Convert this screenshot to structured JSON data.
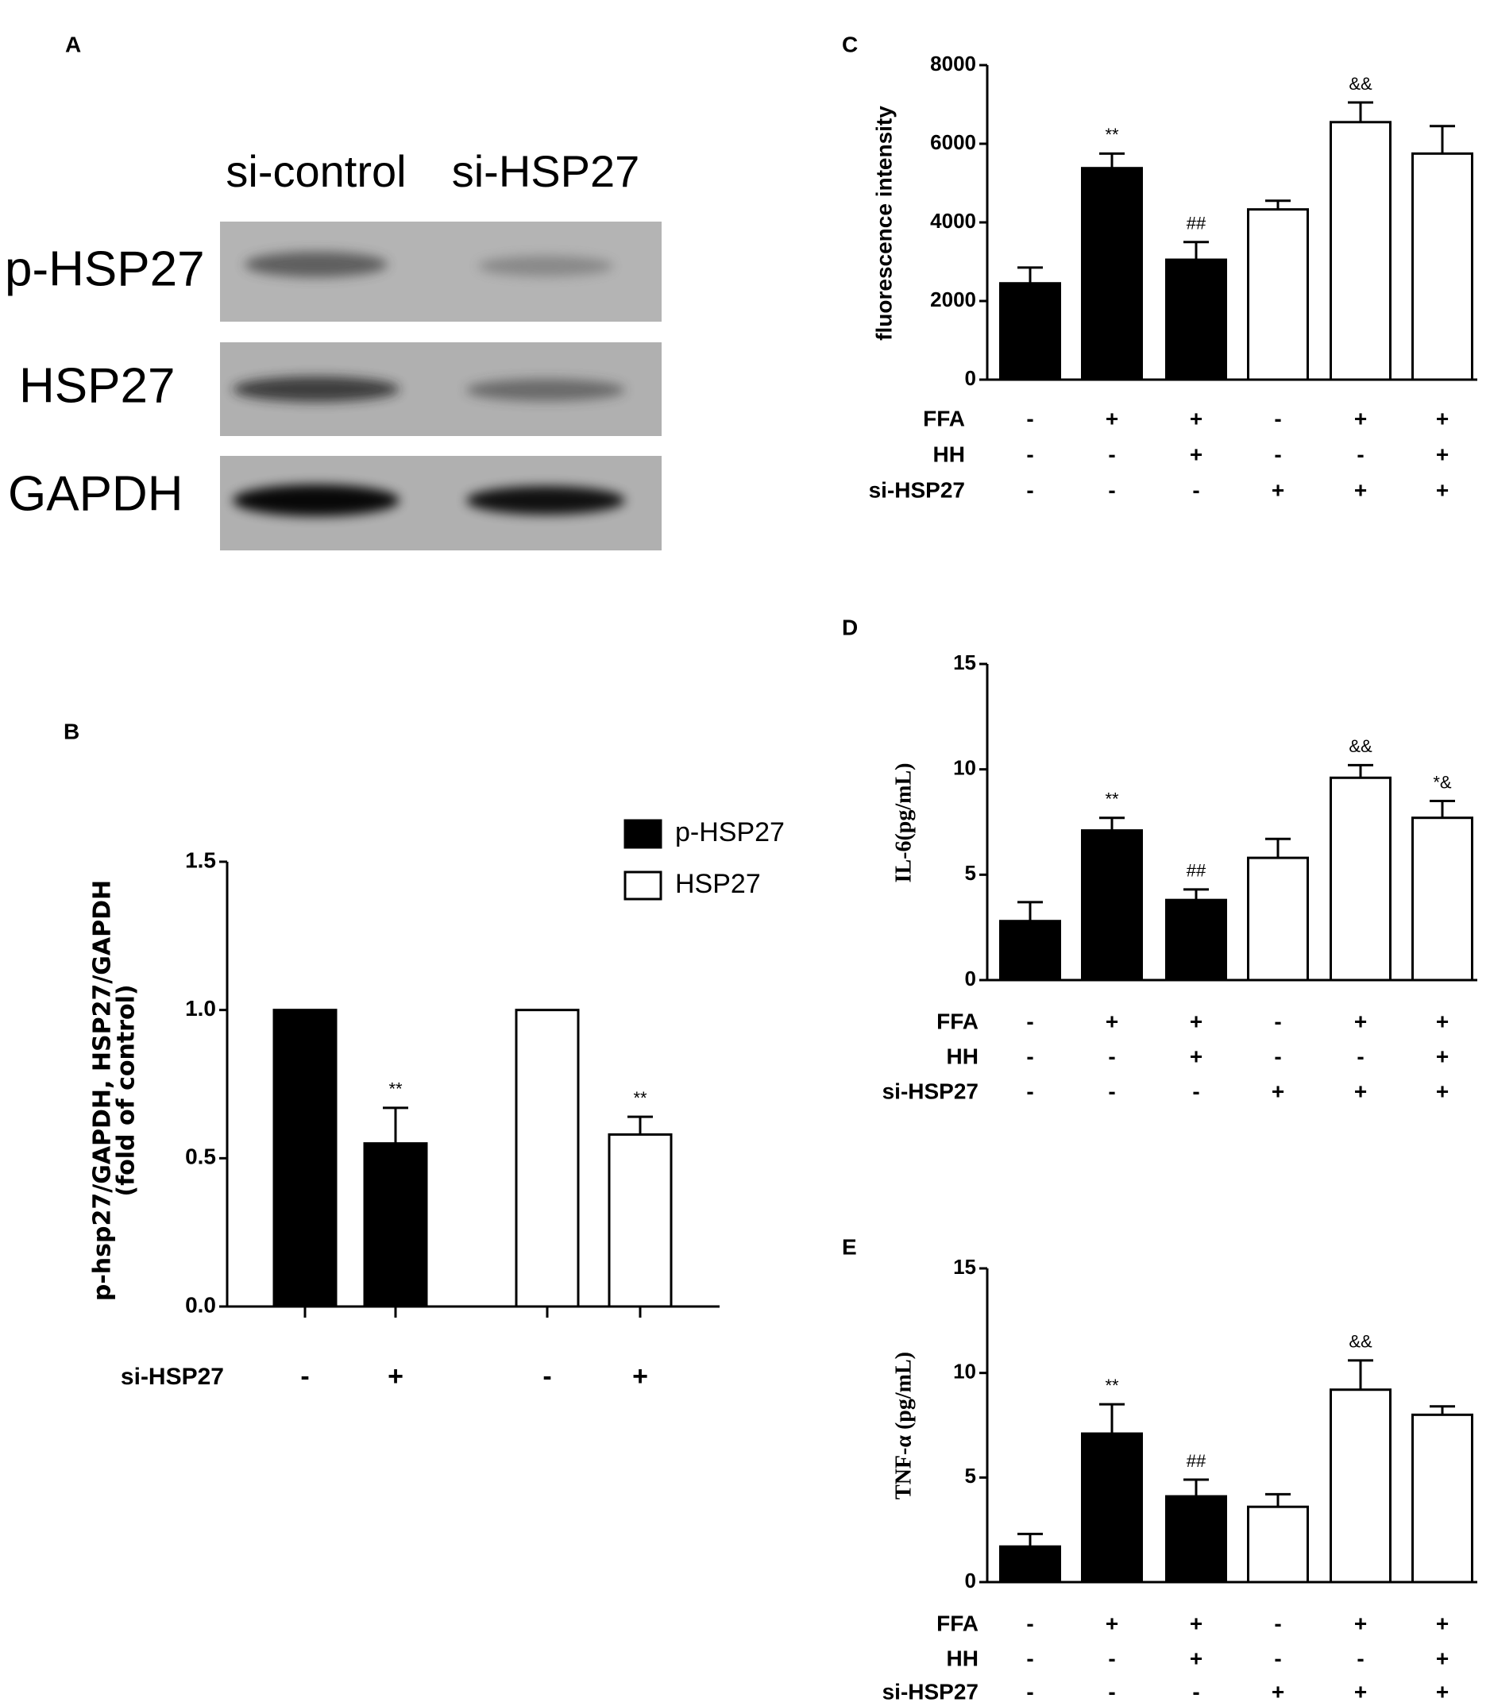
{
  "blot": {
    "panel": "A",
    "lanes": [
      "si-control",
      "si-HSP27"
    ],
    "rows": [
      "p-HSP27",
      "HSP27",
      "GAPDH"
    ]
  },
  "chart_data": [
    {
      "type": "bar",
      "panel": "B",
      "ylabel": [
        "p-hsp27/GAPDH, HSP27/GAPDH",
        "(fold of control)"
      ],
      "ylim": [
        0,
        1.5
      ],
      "yticks": [
        {
          "value": 0,
          "label": "0.0"
        },
        {
          "value": 0.5,
          "label": "0.5"
        },
        {
          "value": 1,
          "label": "1.0"
        },
        {
          "value": 1.5,
          "label": "1.5"
        }
      ],
      "condition_rows": [
        {
          "name": "si-HSP27",
          "signs": [
            "-",
            "+",
            "-",
            "+"
          ]
        }
      ],
      "series": [
        {
          "name": "p-HSP27",
          "color": "#000000",
          "values": [
            1,
            0.55,
            null,
            null
          ],
          "errors": [
            null,
            0.12,
            null,
            null
          ],
          "significance": [
            null,
            "**",
            null,
            null
          ]
        },
        {
          "name": "HSP27",
          "color": "#ffffff",
          "values": [
            null,
            null,
            1,
            0.58
          ],
          "errors": [
            null,
            null,
            null,
            0.06
          ],
          "significance": [
            null,
            null,
            null,
            "**"
          ]
        }
      ],
      "legend": "top-right"
    },
    {
      "type": "bar",
      "panel": "C",
      "ylabel": "fluorescence intensity",
      "ylim": [
        0,
        8000
      ],
      "yticks": [
        0,
        2000,
        4000,
        6000,
        8000
      ],
      "condition_rows": [
        {
          "name": "FFA",
          "signs": [
            "-",
            "+",
            "+",
            "-",
            "+",
            "+"
          ]
        },
        {
          "name": "HH",
          "signs": [
            "-",
            "-",
            "+",
            "-",
            "-",
            "+"
          ]
        },
        {
          "name": "si-HSP27",
          "signs": [
            "-",
            "-",
            "-",
            "+",
            "+",
            "+"
          ]
        }
      ],
      "values": [
        2450,
        5380,
        3050,
        4330,
        6550,
        5750
      ],
      "errors": [
        400,
        370,
        450,
        220,
        500,
        700
      ],
      "colors": [
        "#000000",
        "#000000",
        "#000000",
        "#ffffff",
        "#ffffff",
        "#ffffff"
      ],
      "significance": [
        null,
        "**",
        "##",
        null,
        "&&",
        null
      ]
    },
    {
      "type": "bar",
      "panel": "D",
      "ylabel": "IL-6(pg/mL)",
      "ylim": [
        0,
        15
      ],
      "yticks": [
        0,
        5,
        10,
        15
      ],
      "condition_rows": [
        {
          "name": "FFA",
          "signs": [
            "-",
            "+",
            "+",
            "-",
            "+",
            "+"
          ]
        },
        {
          "name": "HH",
          "signs": [
            "-",
            "-",
            "+",
            "-",
            "-",
            "+"
          ]
        },
        {
          "name": "si-HSP27",
          "signs": [
            "-",
            "-",
            "-",
            "+",
            "+",
            "+"
          ]
        }
      ],
      "values": [
        2.8,
        7.1,
        3.8,
        5.8,
        9.6,
        7.7
      ],
      "errors": [
        0.9,
        0.6,
        0.5,
        0.9,
        0.6,
        0.8
      ],
      "colors": [
        "#000000",
        "#000000",
        "#000000",
        "#ffffff",
        "#ffffff",
        "#ffffff"
      ],
      "significance": [
        null,
        "**",
        "##",
        null,
        "&&",
        "*&"
      ]
    },
    {
      "type": "bar",
      "panel": "E",
      "ylabel": "TNF-α (pg/mL)",
      "ylim": [
        0,
        15
      ],
      "yticks": [
        0,
        5,
        10,
        15
      ],
      "condition_rows": [
        {
          "name": "FFA",
          "signs": [
            "-",
            "+",
            "+",
            "-",
            "+",
            "+"
          ]
        },
        {
          "name": "HH",
          "signs": [
            "-",
            "-",
            "+",
            "-",
            "-",
            "+"
          ]
        },
        {
          "name": "si-HSP27",
          "signs": [
            "-",
            "-",
            "-",
            "+",
            "+",
            "+"
          ]
        }
      ],
      "values": [
        1.7,
        7.1,
        4.1,
        3.6,
        9.2,
        8.0
      ],
      "errors": [
        0.6,
        1.4,
        0.8,
        0.6,
        1.4,
        0.4
      ],
      "colors": [
        "#000000",
        "#000000",
        "#000000",
        "#ffffff",
        "#ffffff",
        "#ffffff"
      ],
      "significance": [
        null,
        "**",
        "##",
        null,
        "&&",
        null
      ]
    }
  ]
}
